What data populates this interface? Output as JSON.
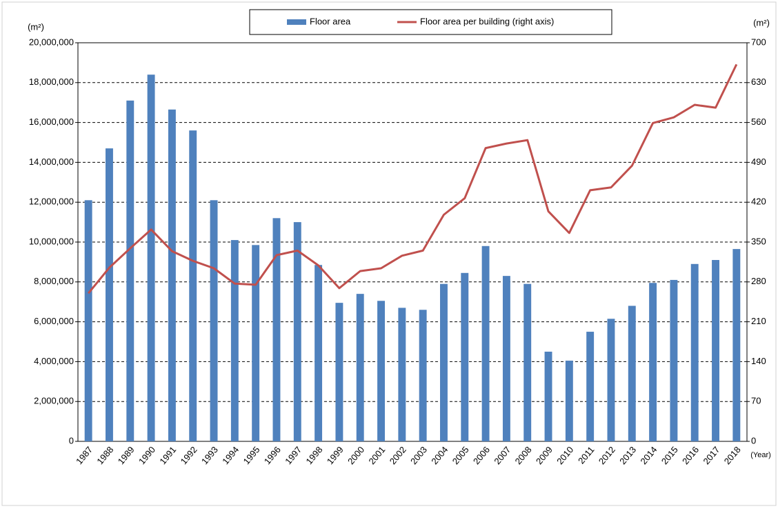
{
  "chart_data": {
    "type": "bar",
    "categories": [
      "1987",
      "1988",
      "1989",
      "1990",
      "1991",
      "1992",
      "1993",
      "1994",
      "1995",
      "1996",
      "1997",
      "1998",
      "1999",
      "2000",
      "2001",
      "2002",
      "2003",
      "2004",
      "2005",
      "2006",
      "2007",
      "2008",
      "2009",
      "2010",
      "2011",
      "2012",
      "2013",
      "2014",
      "2015",
      "2016",
      "2017",
      "2018"
    ],
    "series": [
      {
        "name": "Floor area",
        "color": "#4f81bd",
        "type": "bar",
        "values": [
          12100000,
          14700000,
          17100000,
          18400000,
          16650000,
          15600000,
          12100000,
          10100000,
          9850000,
          11200000,
          11000000,
          8850000,
          6950000,
          7400000,
          7050000,
          6700000,
          6600000,
          7900000,
          8450000,
          9800000,
          8300000,
          7900000,
          4500000,
          4050000,
          5500000,
          6150000,
          6800000,
          7950000,
          8100000,
          8900000,
          9100000,
          9650000
        ]
      },
      {
        "name": "Floor area per building (right axis)",
        "color": "#c0504d",
        "type": "line",
        "axis": "y2",
        "values": [
          260,
          305,
          339,
          372,
          334,
          317,
          304,
          277,
          275,
          327,
          335,
          309,
          269,
          299,
          304,
          326,
          335,
          398,
          427,
          515,
          523,
          529,
          404,
          366,
          441,
          446,
          484,
          559,
          569,
          591,
          586,
          662
        ]
      }
    ],
    "ylim": [
      0,
      20000000
    ],
    "yticks": [
      {
        "value": 0,
        "label": "0"
      },
      {
        "value": 2000000,
        "label": "2,000,000"
      },
      {
        "value": 4000000,
        "label": "4,000,000"
      },
      {
        "value": 6000000,
        "label": "6,000,000"
      },
      {
        "value": 8000000,
        "label": "8,000,000"
      },
      {
        "value": 10000000,
        "label": "10,000,000"
      },
      {
        "value": 12000000,
        "label": "12,000,000"
      },
      {
        "value": 14000000,
        "label": "14,000,000"
      },
      {
        "value": 16000000,
        "label": "16,000,000"
      },
      {
        "value": 18000000,
        "label": "18,000,000"
      },
      {
        "value": 20000000,
        "label": "20,000,000"
      }
    ],
    "y2lim": [
      0,
      700
    ],
    "y2ticks": [
      0,
      70,
      140,
      210,
      280,
      350,
      420,
      490,
      560,
      630,
      700
    ],
    "y_unit_label": "(m²)",
    "y2_unit_label": "(m²)",
    "x_unit_label": "(Year)",
    "grid": true,
    "legend": "top"
  }
}
